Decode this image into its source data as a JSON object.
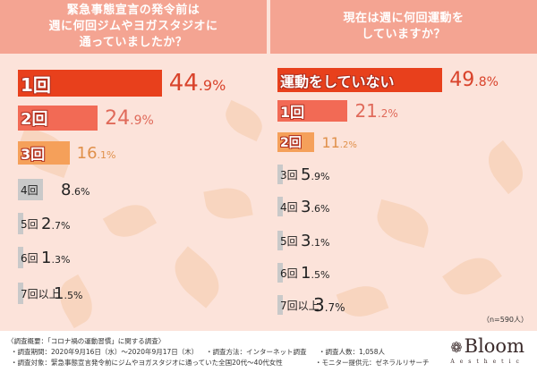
{
  "colors": {
    "header_bg": "#f4a492",
    "bar_1": "#e8401c",
    "bar_2": "#f26a55",
    "bar_3": "#f5a05a",
    "bar_gray": "#c9c9c9",
    "pct_1": "#d9432b",
    "pct_2": "#e06a5a",
    "pct_3": "#e0904a",
    "pct_gray": "#222222"
  },
  "left": {
    "title_lines": [
      "緊急事態宣言の発令前は",
      "週に何回ジムやヨガスタジオに",
      "通っていましたか？"
    ]
  },
  "right": {
    "title_lines": [
      "現在は週に何回運動を",
      "していますか？"
    ]
  },
  "chart_data": [
    {
      "type": "bar",
      "orientation": "horizontal",
      "title": "緊急事態宣言の発令前は週に何回ジムやヨガスタジオに通っていましたか？",
      "categories": [
        "1回",
        "2回",
        "3回",
        "4回",
        "5回",
        "6回",
        "7回以上"
      ],
      "values": [
        44.9,
        24.9,
        16.1,
        8.6,
        2.7,
        1.3,
        1.5
      ],
      "labels": [
        {
          "int": "44",
          "dec": ".9%"
        },
        {
          "int": "24",
          "dec": ".9%"
        },
        {
          "int": "16",
          "dec": ".1%"
        },
        {
          "int": "8",
          "dec": ".6%"
        },
        {
          "int": "2",
          "dec": ".7%"
        },
        {
          "int": "1",
          "dec": ".3%"
        },
        {
          "int": "1",
          "dec": ".5%"
        }
      ],
      "unit": "%"
    },
    {
      "type": "bar",
      "orientation": "horizontal",
      "title": "現在は週に何回運動をしていますか？",
      "categories": [
        "運動をしていない",
        "1回",
        "2回",
        "3回",
        "4回",
        "5回",
        "6回",
        "7回以上"
      ],
      "values": [
        49.8,
        21.2,
        11.2,
        5.9,
        3.6,
        3.1,
        1.5,
        3.7
      ],
      "labels": [
        {
          "int": "49",
          "dec": ".8%"
        },
        {
          "int": "21",
          "dec": ".2%"
        },
        {
          "int": "11",
          "dec": ".2%"
        },
        {
          "int": "5",
          "dec": ".9%"
        },
        {
          "int": "3",
          "dec": ".6%"
        },
        {
          "int": "3",
          "dec": ".1%"
        },
        {
          "int": "1",
          "dec": ".5%"
        },
        {
          "int": "3",
          "dec": ".7%"
        }
      ],
      "unit": "%",
      "note": "（n=590人）"
    }
  ],
  "footer": {
    "line1": "〈調査概要：「コロナ禍の運動習慣」に関する調査〉",
    "period": "・調査期間：2020年9月16日（水）～2020年9月17日（木）",
    "method": "・調査方法：インターネット調査",
    "count": "・調査人数：1,058人",
    "target": "・調査対象：緊急事態宣言発令前にジムやヨガスタジオに通っていた全国20代～40代女性",
    "provider": "・モニター提供元：ゼネラルリサーチ"
  },
  "logo": {
    "icon": "❁",
    "name": "Bloom",
    "sub": "Aesthetic"
  }
}
